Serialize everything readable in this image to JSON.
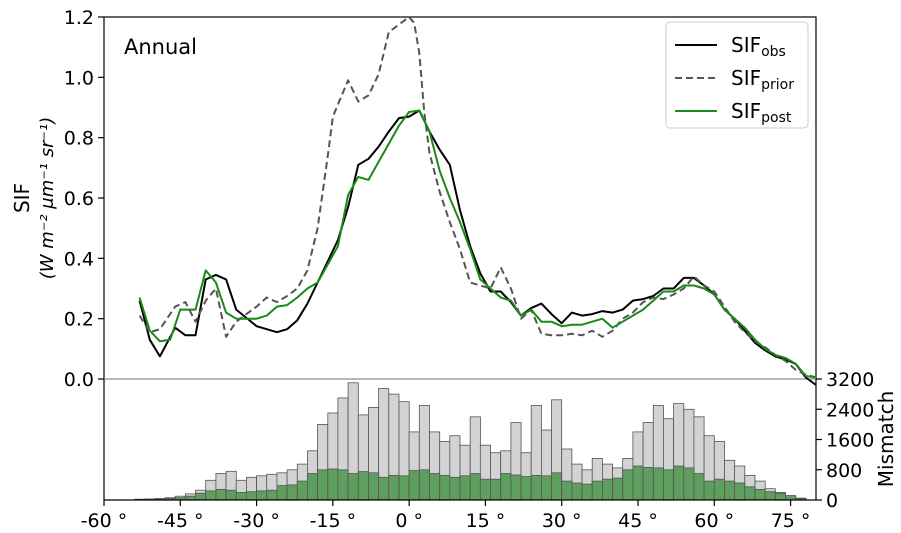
{
  "chart_data": [
    {
      "type": "line",
      "annotation": "Annual",
      "ylabel_line1": "SIF",
      "ylabel_line2": "(W m⁻² μm⁻¹ sr⁻¹)",
      "xlim": [
        -60,
        80
      ],
      "ylim": [
        0,
        1.2
      ],
      "yticks": [
        "0.0",
        "0.2",
        "0.4",
        "0.6",
        "0.8",
        "1.0",
        "1.2"
      ],
      "grid": false,
      "legend_position": "top-right",
      "series": [
        {
          "name": "SIFobs",
          "name_base": "SIF",
          "name_sub": "obs",
          "color": "#000000",
          "style": "solid",
          "x": [
            -53,
            -51,
            -49,
            -46,
            -44,
            -42,
            -40,
            -38,
            -36,
            -34,
            -30,
            -28,
            -26,
            -24,
            -22,
            -20,
            -18,
            -14,
            -12,
            -10,
            -8,
            -6,
            -4,
            -2,
            0,
            2,
            4,
            6,
            8,
            10,
            12,
            14,
            16,
            18,
            20,
            22,
            24,
            26,
            28,
            30,
            32,
            34,
            36,
            38,
            40,
            42,
            44,
            46,
            48,
            50,
            52,
            54,
            56,
            58,
            60,
            62,
            64,
            66,
            68,
            70,
            72,
            74,
            76,
            78,
            80
          ],
          "y": [
            0.26,
            0.13,
            0.075,
            0.17,
            0.145,
            0.145,
            0.33,
            0.345,
            0.33,
            0.23,
            0.175,
            0.165,
            0.155,
            0.165,
            0.195,
            0.25,
            0.32,
            0.46,
            0.57,
            0.71,
            0.73,
            0.77,
            0.82,
            0.865,
            0.87,
            0.89,
            0.82,
            0.76,
            0.71,
            0.56,
            0.44,
            0.35,
            0.29,
            0.29,
            0.255,
            0.21,
            0.235,
            0.25,
            0.215,
            0.185,
            0.22,
            0.21,
            0.215,
            0.225,
            0.22,
            0.23,
            0.26,
            0.265,
            0.275,
            0.3,
            0.3,
            0.335,
            0.335,
            0.31,
            0.28,
            0.23,
            0.2,
            0.16,
            0.12,
            0.095,
            0.075,
            0.065,
            0.05,
            0.005,
            -0.02
          ]
        },
        {
          "name": "SIFprior",
          "name_base": "SIF",
          "name_sub": "prior",
          "color": "#555555",
          "style": "dashed",
          "x": [
            -53,
            -51,
            -49,
            -46,
            -44,
            -42,
            -40,
            -38,
            -36,
            -34,
            -30,
            -28,
            -26,
            -24,
            -22,
            -20,
            -18,
            -16,
            -15,
            -14,
            -12,
            -10,
            -8,
            -6,
            -4,
            -2,
            0,
            1,
            2,
            3,
            4,
            6,
            8,
            10,
            12,
            14,
            16,
            18,
            20,
            22,
            24,
            26,
            28,
            30,
            32,
            34,
            36,
            38,
            40,
            42,
            44,
            46,
            48,
            50,
            52,
            54,
            56,
            58,
            60,
            62,
            64,
            66,
            68,
            70,
            72,
            74,
            76,
            78,
            80
          ],
          "y": [
            0.21,
            0.155,
            0.165,
            0.24,
            0.255,
            0.19,
            0.26,
            0.3,
            0.14,
            0.19,
            0.24,
            0.27,
            0.255,
            0.275,
            0.3,
            0.36,
            0.5,
            0.74,
            0.87,
            0.91,
            0.99,
            0.92,
            0.94,
            1.01,
            1.15,
            1.175,
            1.2,
            1.18,
            1.08,
            0.88,
            0.75,
            0.62,
            0.52,
            0.43,
            0.32,
            0.31,
            0.3,
            0.37,
            0.3,
            0.2,
            0.23,
            0.15,
            0.145,
            0.145,
            0.15,
            0.145,
            0.16,
            0.14,
            0.16,
            0.2,
            0.22,
            0.255,
            0.27,
            0.265,
            0.28,
            0.3,
            0.34,
            0.31,
            0.29,
            0.24,
            0.19,
            0.155,
            0.125,
            0.105,
            0.08,
            0.06,
            0.03,
            0.015,
            0.005
          ]
        },
        {
          "name": "SIFpost",
          "name_base": "SIF",
          "name_sub": "post",
          "color": "#1a8a1a",
          "style": "solid",
          "x": [
            -53,
            -51,
            -49,
            -47,
            -45,
            -42,
            -40,
            -38,
            -36,
            -34,
            -30,
            -28,
            -26,
            -24,
            -22,
            -20,
            -18,
            -14,
            -12,
            -10,
            -8,
            -6,
            -4,
            -2,
            0,
            2,
            4,
            6,
            8,
            10,
            12,
            14,
            16,
            18,
            20,
            22,
            24,
            26,
            28,
            30,
            32,
            34,
            36,
            38,
            40,
            42,
            44,
            46,
            48,
            50,
            52,
            54,
            56,
            58,
            60,
            62,
            64,
            66,
            68,
            70,
            72,
            74,
            76,
            78,
            80
          ],
          "y": [
            0.27,
            0.16,
            0.125,
            0.13,
            0.23,
            0.23,
            0.36,
            0.32,
            0.22,
            0.2,
            0.2,
            0.21,
            0.24,
            0.245,
            0.27,
            0.3,
            0.32,
            0.44,
            0.61,
            0.67,
            0.66,
            0.72,
            0.78,
            0.84,
            0.885,
            0.89,
            0.82,
            0.69,
            0.6,
            0.52,
            0.43,
            0.33,
            0.3,
            0.27,
            0.26,
            0.21,
            0.23,
            0.19,
            0.19,
            0.175,
            0.18,
            0.18,
            0.19,
            0.2,
            0.17,
            0.19,
            0.21,
            0.23,
            0.26,
            0.29,
            0.29,
            0.31,
            0.31,
            0.3,
            0.28,
            0.23,
            0.2,
            0.17,
            0.13,
            0.1,
            0.08,
            0.07,
            0.05,
            0.01,
            0.005
          ]
        }
      ]
    },
    {
      "type": "bar",
      "ylabel": "Mismatch",
      "xlabel_ticks": [
        "-60 °",
        "-45 °",
        "-30 °",
        "-15 °",
        "0 °",
        "15 °",
        "30 °",
        "45 °",
        "60 °",
        "75 °"
      ],
      "ylim": [
        0,
        3200
      ],
      "yticks": [
        "0",
        "800",
        "1600",
        "2400",
        "3200"
      ],
      "bin_width_deg": 2,
      "bin_start_x": [
        -54,
        -52,
        -50,
        -48,
        -46,
        -44,
        -42,
        -40,
        -38,
        -36,
        -34,
        -32,
        -30,
        -28,
        -26,
        -24,
        -22,
        -20,
        -18,
        -16,
        -14,
        -12,
        -10,
        -8,
        -6,
        -4,
        -2,
        0,
        2,
        4,
        6,
        8,
        10,
        12,
        14,
        16,
        18,
        20,
        22,
        24,
        26,
        28,
        30,
        32,
        34,
        36,
        38,
        40,
        42,
        44,
        46,
        48,
        50,
        52,
        54,
        56,
        58,
        60,
        62,
        64,
        66,
        68,
        70,
        72,
        74,
        76
      ],
      "series": [
        {
          "name": "gray",
          "color": "#d3d3d3",
          "values": [
            20,
            30,
            40,
            60,
            100,
            160,
            260,
            520,
            700,
            760,
            520,
            600,
            640,
            680,
            720,
            800,
            950,
            1300,
            2000,
            2300,
            2700,
            3100,
            2250,
            2450,
            2950,
            2800,
            2600,
            1800,
            2500,
            1800,
            1550,
            1700,
            1450,
            2200,
            1450,
            1250,
            1300,
            2050,
            1250,
            2500,
            1850,
            2650,
            1350,
            950,
            800,
            1100,
            950,
            850,
            1100,
            1800,
            2050,
            2500,
            2150,
            2550,
            2400,
            2200,
            1700,
            1550,
            1050,
            900,
            650,
            500,
            300,
            200,
            100,
            50
          ]
        },
        {
          "name": "green",
          "color": "#5e9e5e",
          "values": [
            5,
            10,
            20,
            40,
            60,
            100,
            180,
            240,
            280,
            260,
            200,
            220,
            240,
            260,
            380,
            400,
            500,
            700,
            800,
            820,
            800,
            700,
            750,
            720,
            600,
            650,
            640,
            780,
            800,
            700,
            650,
            600,
            640,
            700,
            550,
            550,
            700,
            660,
            620,
            650,
            640,
            720,
            500,
            450,
            420,
            500,
            550,
            580,
            800,
            900,
            860,
            850,
            800,
            900,
            850,
            700,
            500,
            550,
            500,
            450,
            350,
            280,
            220,
            180,
            120,
            40
          ]
        }
      ]
    }
  ],
  "legend": {
    "entries": [
      {
        "base": "SIF",
        "sub": "obs"
      },
      {
        "base": "SIF",
        "sub": "prior"
      },
      {
        "base": "SIF",
        "sub": "post"
      }
    ]
  }
}
